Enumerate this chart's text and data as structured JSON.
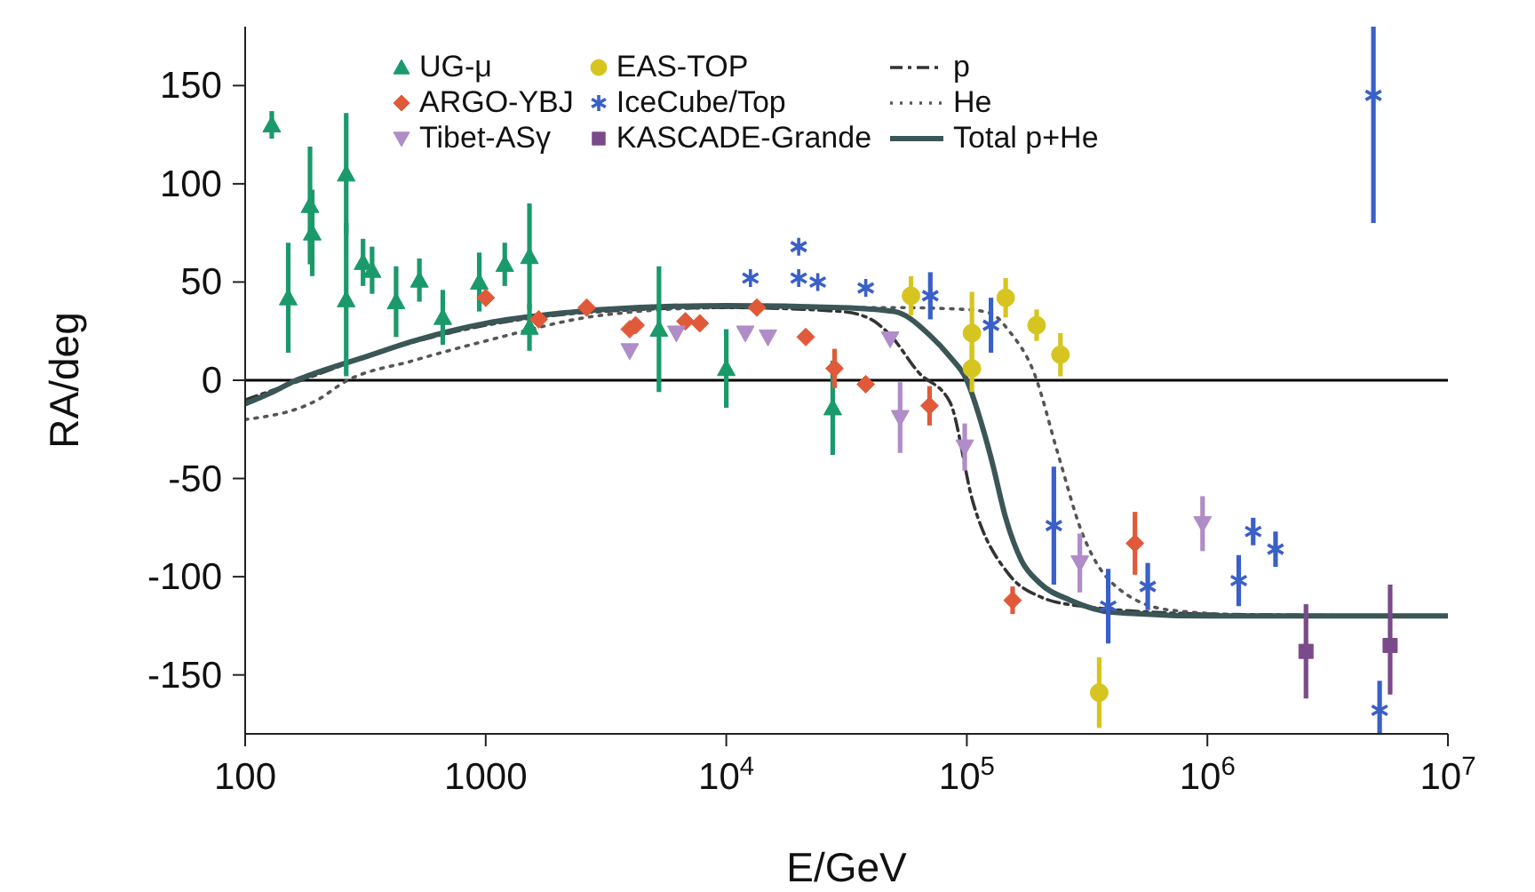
{
  "chart_data": {
    "type": "scatter",
    "xlabel": "E/GeV",
    "ylabel": "RA/deg",
    "log": "x",
    "xlim": [
      100,
      10000000
    ],
    "ylim": [
      -180,
      180
    ],
    "xticks": [
      100,
      1000,
      {
        "value": 10000,
        "label": "10$^{4}$"
      },
      {
        "value": 100000,
        "label": "10$^{5}$"
      },
      {
        "value": 1000000,
        "label": "10$^{6}$"
      },
      {
        "value": 10000000,
        "label": "10$^{7}$"
      }
    ],
    "yticks": [
      -150,
      -100,
      -50,
      0,
      50,
      100,
      150
    ],
    "grid": false,
    "legend": "top",
    "ref_lines": [
      {
        "axis": "y",
        "value": 0,
        "color": "#000000"
      }
    ],
    "series": [
      {
        "name": "UG-μ",
        "marker": "triangle",
        "color": "#1a9a6a",
        "x": [
          129,
          151,
          186,
          190,
          263,
          263,
          309,
          337,
          424,
          530,
          663,
          940,
          1200,
          1520,
          1520,
          5250,
          10000,
          27700
        ],
        "values": [
          130,
          42,
          89,
          75,
          105,
          41,
          60,
          56,
          40,
          51,
          32,
          50,
          59,
          63,
          27,
          26,
          6,
          -14
        ],
        "errors": [
          7,
          28,
          30,
          22,
          31,
          39,
          12,
          12,
          18,
          11,
          14,
          15,
          11,
          27,
          12,
          32,
          20,
          24
        ]
      },
      {
        "name": "ARGO-YBJ",
        "marker": "diamond",
        "color": "#e05a3a",
        "x": [
          1000,
          1660,
          2630,
          3970,
          4200,
          6760,
          7760,
          13400,
          21400,
          28200,
          38000,
          70000,
          155000,
          500000
        ],
        "values": [
          42,
          31,
          37,
          26,
          28,
          30,
          29,
          37,
          22,
          6,
          -2,
          -13,
          -112,
          -83
        ],
        "errors": [
          null,
          null,
          null,
          null,
          null,
          null,
          null,
          null,
          null,
          10,
          null,
          10,
          7,
          16
        ]
      },
      {
        "name": "Tibet-ASγ",
        "marker": "triangle-down",
        "color": "#b08cc8",
        "x": [
          3970,
          6200,
          12000,
          14900,
          48000,
          52800,
          98000,
          295000,
          955000
        ],
        "values": [
          15,
          24,
          24,
          22,
          21,
          -19,
          -34,
          -93,
          -73
        ],
        "errors": [
          null,
          null,
          null,
          null,
          null,
          18,
          12,
          15,
          14
        ]
      },
      {
        "name": "EAS-TOP",
        "marker": "circle",
        "color": "#d6c520",
        "x": [
          58600,
          105000,
          105000,
          145000,
          195000,
          245000,
          355000
        ],
        "values": [
          43,
          24,
          6,
          42,
          28,
          13,
          -159
        ],
        "errors": [
          10,
          21,
          12,
          10,
          8,
          11,
          18
        ]
      },
      {
        "name": "IceCube/Top",
        "marker": "cross",
        "color": "#3a5fc8",
        "x": [
          12600,
          20000,
          20000,
          24000,
          38000,
          70500,
          126000,
          230000,
          387000,
          565000,
          1350000,
          1550000,
          1920000,
          4900000,
          5200000
        ],
        "values": [
          52,
          68,
          52,
          50,
          47,
          43,
          28,
          -74,
          -115,
          -105,
          -102,
          -77,
          -86,
          145,
          -168
        ],
        "errors": [
          null,
          null,
          null,
          null,
          null,
          12,
          14,
          30,
          19,
          12,
          13,
          7,
          9,
          [
            80,
            180
          ],
          [
            -180,
            -153
          ]
        ]
      },
      {
        "name": "KASCADE-Grande",
        "marker": "square",
        "color": "#7a4a8a",
        "x": [
          2570000,
          5750000
        ],
        "values": [
          -138,
          -135
        ],
        "errors": [
          24,
          [
            -160,
            -104
          ]
        ]
      },
      {
        "name": "p",
        "type": "line",
        "marker": "none",
        "line_style": "dashed",
        "color": "#333333",
        "x": [
          100,
          200,
          300,
          1000,
          3000,
          10000,
          30000,
          40000,
          48000,
          63000,
          85000,
          106000,
          150000,
          200000,
          300000,
          1000000,
          10000000
        ],
        "values": [
          -10,
          3,
          11,
          28,
          35,
          37,
          35,
          31,
          23,
          4,
          -11,
          -62,
          -99,
          -110,
          -115,
          -119,
          -120
        ]
      },
      {
        "name": "He",
        "type": "line",
        "marker": "none",
        "line_style": "dotted",
        "color": "#555555",
        "x": [
          100,
          200,
          258,
          500,
          1000,
          3000,
          10000,
          50000,
          100000,
          126000,
          150000,
          190000,
          240000,
          300000,
          400000,
          700000,
          2000000,
          10000000
        ],
        "values": [
          -20,
          -10,
          -1,
          10,
          20,
          33,
          37,
          37,
          36,
          34,
          25,
          4,
          -38,
          -77,
          -103,
          -117,
          -120,
          -120
        ]
      },
      {
        "name": "Total p+He",
        "type": "line",
        "marker": "none",
        "line_style": "solid",
        "color": "#3b5656",
        "x": [
          100,
          130,
          163,
          200,
          300,
          500,
          1000,
          2000,
          3000,
          10000,
          30000,
          50000,
          70000,
          85000,
          100000,
          115000,
          127000,
          145000,
          169000,
          200000,
          270000,
          400000,
          1000000,
          10000000
        ],
        "values": [
          -12,
          -6,
          0,
          4,
          11,
          20,
          29,
          34,
          36,
          38,
          37,
          35,
          23,
          12,
          0,
          -22,
          -41,
          -70,
          -92,
          -103,
          -112,
          -118,
          -120,
          -120
        ]
      }
    ]
  }
}
